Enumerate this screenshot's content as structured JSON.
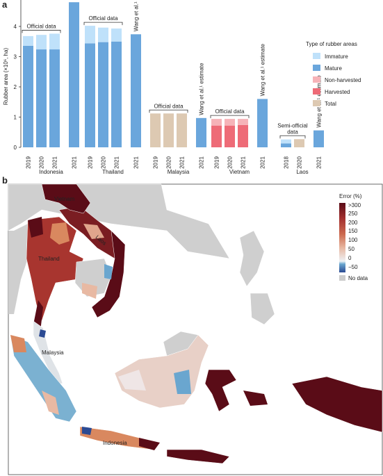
{
  "panel_a_letter": "a",
  "panel_b_letter": "b",
  "colors": {
    "immature": "#bfe1fa",
    "mature": "#6aa6dc",
    "non_harvested": "#f6b3b8",
    "harvested": "#ee6b77",
    "total": "#ddc9b2",
    "sea": "#ffffff",
    "other_land": "#cfcfcf",
    "no_data": "#cccccc"
  },
  "chart_data": [
    {
      "type": "bar",
      "stacked": true,
      "ylabel": "Rubber area (×10⁶, ha)",
      "ylim": [
        0,
        4.8
      ],
      "yticks": [
        0,
        1,
        2,
        3,
        4
      ],
      "grid": false,
      "legend": {
        "title": "Type of rubber areas",
        "position": "right",
        "entries": [
          {
            "label": "Immature",
            "color_key": "immature"
          },
          {
            "label": "Mature",
            "color_key": "mature"
          },
          {
            "label": "Non-harvested",
            "color_key": "non_harvested"
          },
          {
            "label": "Harvested",
            "color_key": "harvested"
          },
          {
            "label": "Total",
            "color_key": "total"
          }
        ]
      },
      "wang_label": "Wang et al.¹ estimate",
      "groups": [
        {
          "country": "Indonesia",
          "bracket_label": [
            "Official data"
          ],
          "bars": [
            {
              "year": "2019",
              "segments": [
                {
                  "type": "mature",
                  "value": 3.36
                },
                {
                  "type": "immature",
                  "value": 0.32
                }
              ]
            },
            {
              "year": "2020",
              "segments": [
                {
                  "type": "mature",
                  "value": 3.24
                },
                {
                  "type": "immature",
                  "value": 0.48
                }
              ]
            },
            {
              "year": "2021",
              "segments": [
                {
                  "type": "mature",
                  "value": 3.24
                },
                {
                  "type": "immature",
                  "value": 0.52
                }
              ]
            },
            {
              "year": "2021",
              "wang": true,
              "segments": [
                {
                  "type": "mature",
                  "value": 4.8
                }
              ]
            }
          ]
        },
        {
          "country": "Thailand",
          "bracket_label": [
            "Official data"
          ],
          "bars": [
            {
              "year": "2019",
              "segments": [
                {
                  "type": "mature",
                  "value": 3.44
                },
                {
                  "type": "immature",
                  "value": 0.58
                }
              ]
            },
            {
              "year": "2020",
              "segments": [
                {
                  "type": "mature",
                  "value": 3.48
                },
                {
                  "type": "immature",
                  "value": 0.48
                }
              ]
            },
            {
              "year": "2021",
              "segments": [
                {
                  "type": "mature",
                  "value": 3.5
                },
                {
                  "type": "immature",
                  "value": 0.43
                }
              ]
            },
            {
              "year": "2021",
              "wang": true,
              "segments": [
                {
                  "type": "mature",
                  "value": 3.74
                }
              ]
            }
          ]
        },
        {
          "country": "Malaysia",
          "bracket_label": [
            "Official data"
          ],
          "bars": [
            {
              "year": "2019",
              "segments": [
                {
                  "type": "total",
                  "value": 1.12
                }
              ]
            },
            {
              "year": "2020",
              "segments": [
                {
                  "type": "total",
                  "value": 1.12
                }
              ]
            },
            {
              "year": "2021",
              "segments": [
                {
                  "type": "total",
                  "value": 1.12
                }
              ]
            },
            {
              "year": "2021",
              "wang": true,
              "segments": [
                {
                  "type": "mature",
                  "value": 0.97
                }
              ]
            }
          ]
        },
        {
          "country": "Vietnam",
          "bracket_label": [
            "Official data"
          ],
          "bars": [
            {
              "year": "2019",
              "segments": [
                {
                  "type": "harvested",
                  "value": 0.72
                },
                {
                  "type": "non_harvested",
                  "value": 0.22
                }
              ]
            },
            {
              "year": "2020",
              "segments": [
                {
                  "type": "harvested",
                  "value": 0.72
                },
                {
                  "type": "non_harvested",
                  "value": 0.22
                }
              ]
            },
            {
              "year": "2021",
              "segments": [
                {
                  "type": "harvested",
                  "value": 0.74
                },
                {
                  "type": "non_harvested",
                  "value": 0.2
                }
              ]
            },
            {
              "year": "2021",
              "wang": true,
              "segments": [
                {
                  "type": "mature",
                  "value": 1.6
                }
              ]
            }
          ]
        },
        {
          "country": "Laos",
          "bracket_label": [
            "Semi-official",
            "data"
          ],
          "bars": [
            {
              "year": "2018",
              "segments": [
                {
                  "type": "mature",
                  "value": 0.13
                },
                {
                  "type": "immature",
                  "value": 0.13
                }
              ]
            },
            {
              "year": "2020",
              "segments": [
                {
                  "type": "total",
                  "value": 0.27
                }
              ]
            },
            {
              "year": "2021",
              "wang": true,
              "segments": [
                {
                  "type": "mature",
                  "value": 0.56
                }
              ]
            }
          ]
        }
      ]
    },
    {
      "type": "heatmap",
      "map_labels": [
        "Vietnam",
        "Laos",
        "Thailand",
        "Malaysia",
        "Indonesia"
      ],
      "colorbar": {
        "title": "Error (%)",
        "ticks": [
          ">300",
          "250",
          "200",
          "150",
          "100",
          "50",
          "0",
          "−50"
        ],
        "range": [
          -50,
          300
        ],
        "no_data_label": "No data",
        "stops": [
          "#2b4a93",
          "#6aa6cf",
          "#eef2f5",
          "#e8b9a3",
          "#cc6a4f",
          "#a22f2e",
          "#5a0c17"
        ]
      }
    }
  ]
}
